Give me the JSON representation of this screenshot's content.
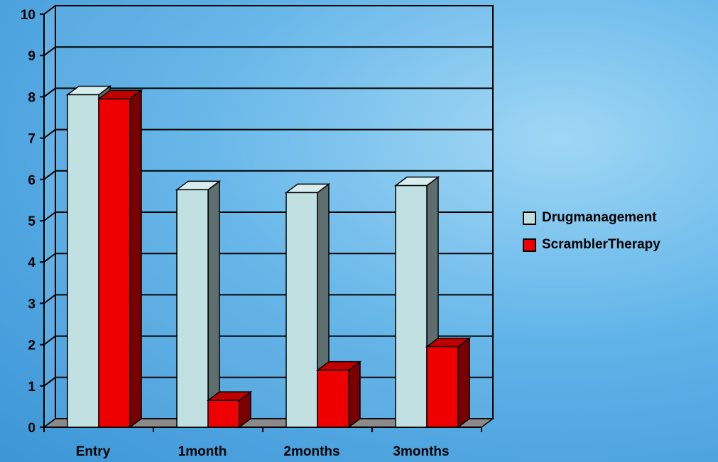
{
  "chart_data": {
    "type": "bar",
    "categories": [
      "Entry",
      "1\u0002month",
      "2\u0002months",
      "3\u0002months"
    ],
    "series": [
      {
        "name": "Drug\u0002management",
        "values": [
          8.05,
          5.75,
          5.68,
          5.85
        ],
        "color": "#c0e0e2"
      },
      {
        "name": "Scrambler\u0002Therapy",
        "values": [
          7.95,
          0.65,
          1.38,
          1.95
        ],
        "color": "#ee0000"
      }
    ],
    "ylim": [
      0,
      10
    ],
    "yticks": [
      0,
      1,
      2,
      3,
      4,
      5,
      6,
      7,
      8,
      9,
      10
    ],
    "grid": true,
    "legend_position": "right"
  }
}
